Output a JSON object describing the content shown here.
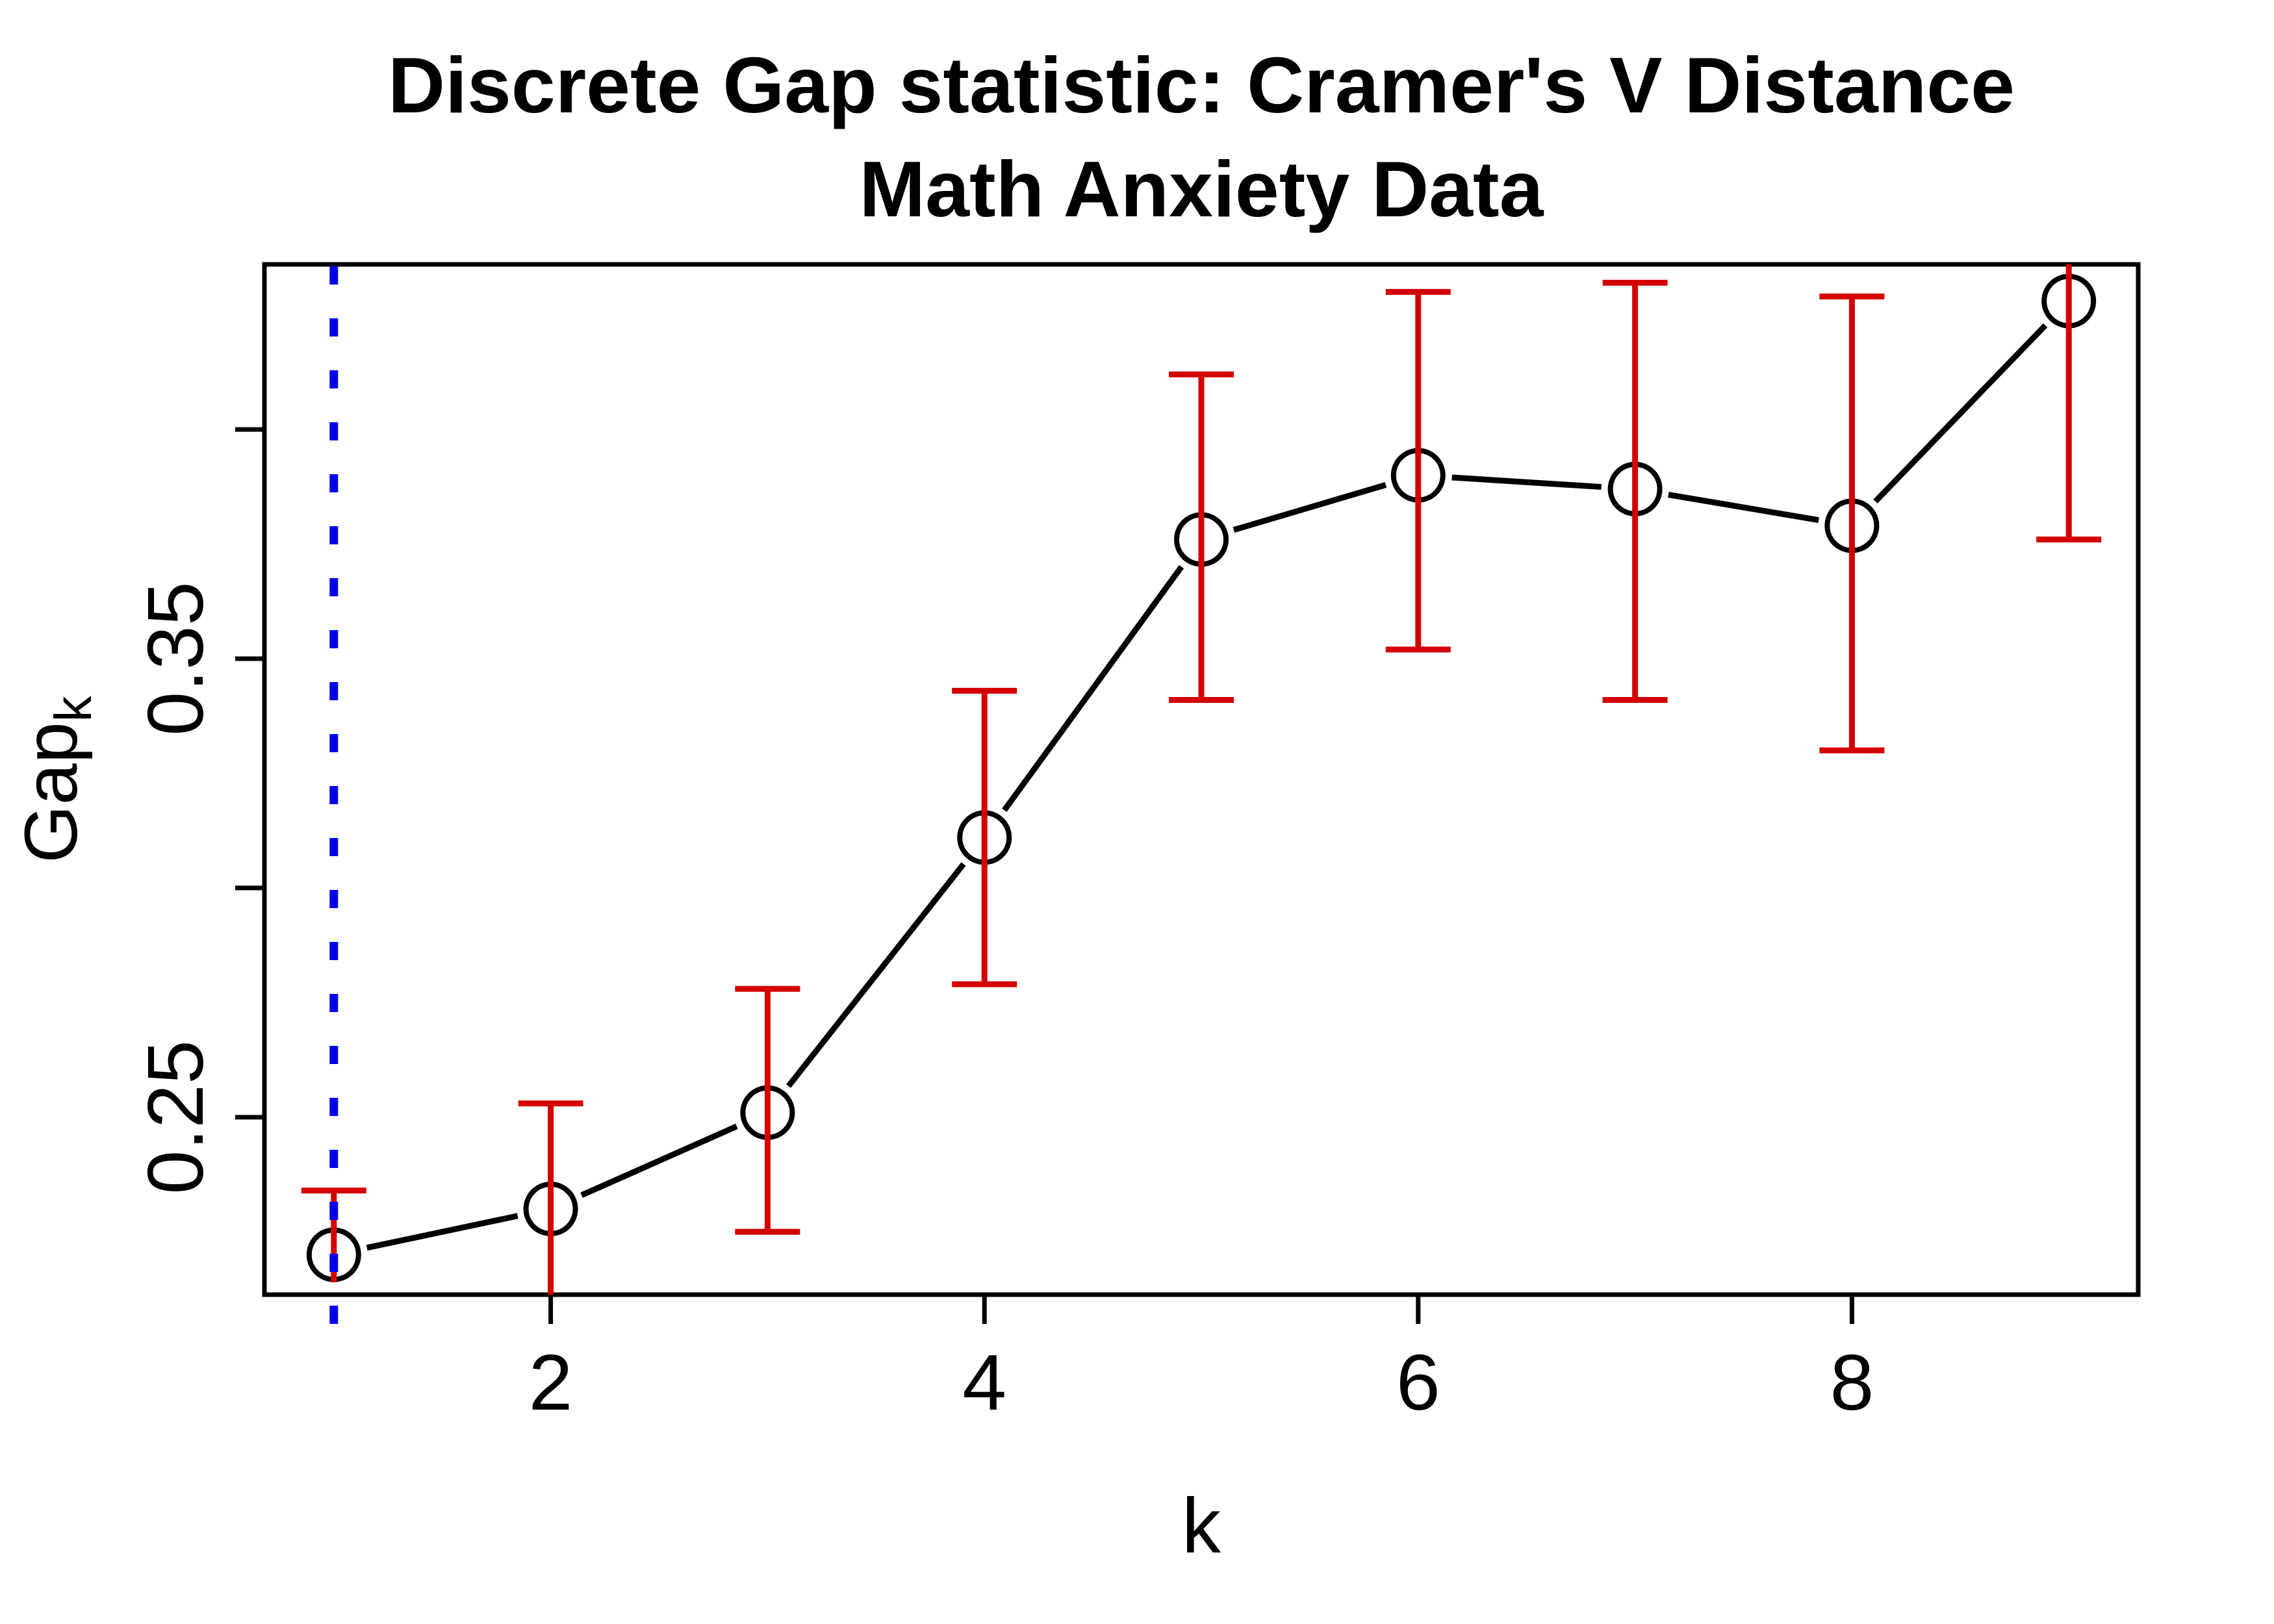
{
  "title": {
    "line1": "Discrete Gap statistic: Cramer's V Distance",
    "line2": "Math Anxiety Data"
  },
  "axes": {
    "xlabel": "k",
    "ylabel": {
      "main": "Gap",
      "sub": "k"
    },
    "x_ticks": [
      {
        "value": 2,
        "label": "2"
      },
      {
        "value": 4,
        "label": "4"
      },
      {
        "value": 6,
        "label": "6"
      },
      {
        "value": 8,
        "label": "8"
      }
    ],
    "y_ticks": [
      {
        "value": 0.25,
        "label": "0.25"
      },
      {
        "value": 0.3,
        "label": ""
      },
      {
        "value": 0.35,
        "label": "0.35"
      },
      {
        "value": 0.4,
        "label": ""
      }
    ]
  },
  "colors": {
    "line": "#000000",
    "point": "#000000",
    "errorbar": "#D40000",
    "vline": "#0000EE",
    "text": "#000000",
    "background": "#FFFFFF"
  },
  "chart_data": {
    "type": "line",
    "title": "Discrete Gap statistic: Cramer's V Distance — Math Anxiety Data",
    "xlabel": "k",
    "ylabel": "Gap_k",
    "x": [
      1,
      2,
      3,
      4,
      5,
      6,
      7,
      8,
      9
    ],
    "series": [
      {
        "name": "Gap_k",
        "values": [
          0.22,
          0.23,
          0.251,
          0.311,
          0.376,
          0.39,
          0.387,
          0.379,
          0.428
        ]
      }
    ],
    "error_upper": [
      0.234,
      0.253,
      0.278,
      0.343,
      0.412,
      0.43,
      0.432,
      0.429,
      0.48
    ],
    "error_lower": [
      0.214,
      0.205,
      0.225,
      0.279,
      0.341,
      0.352,
      0.341,
      0.33,
      0.376
    ],
    "cap_upper": [
      true,
      true,
      true,
      true,
      true,
      true,
      true,
      true,
      false
    ],
    "cap_lower": [
      false,
      false,
      true,
      true,
      true,
      true,
      true,
      true,
      true
    ],
    "vline_x": 1,
    "vline_style": "dotted",
    "xlim": [
      0.68,
      9.32
    ],
    "ylim": [
      0.2113,
      0.436
    ],
    "x_tick_values": [
      2,
      4,
      6,
      8
    ],
    "y_tick_values": [
      0.25,
      0.3,
      0.35,
      0.4
    ],
    "y_tick_labels_shown": [
      "0.25",
      "0.35"
    ],
    "grid": false,
    "legend": "none",
    "marker": "open-circle",
    "point_line_gap": true
  }
}
